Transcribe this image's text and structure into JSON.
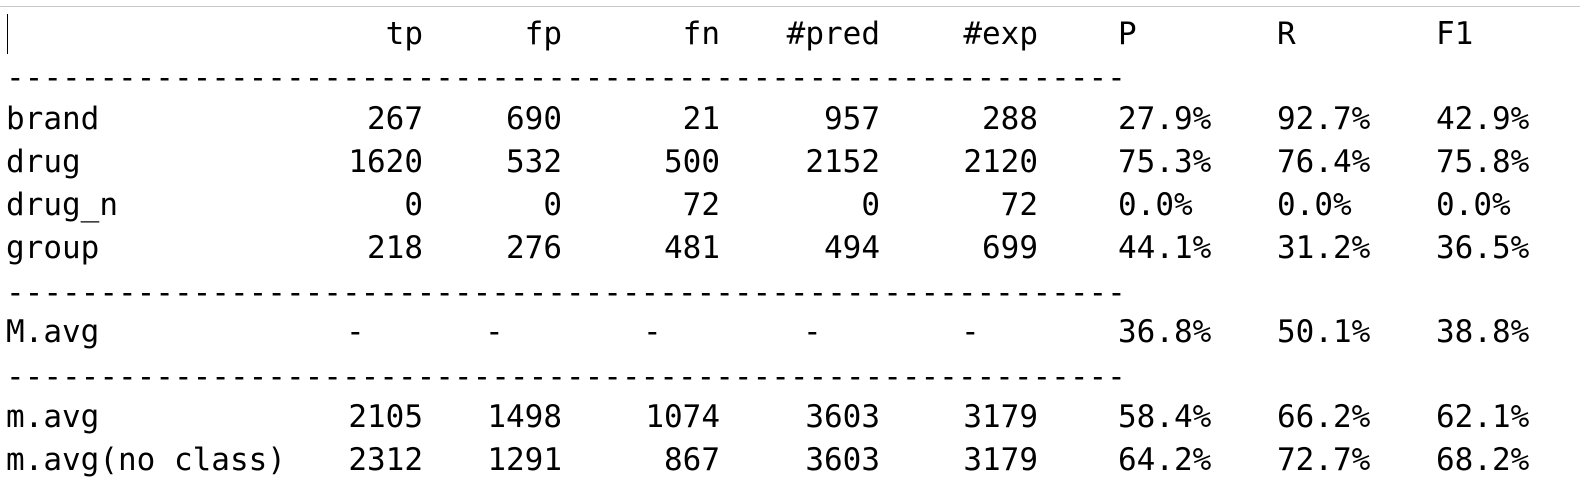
{
  "table": {
    "headers": {
      "tp": "tp",
      "fp": "fp",
      "fn": "fn",
      "pred": "#pred",
      "exp": "#exp",
      "P": "P",
      "R": "R",
      "F1": "F1"
    },
    "separator": "------------------------------------------------------------",
    "class_rows": [
      {
        "label": "brand",
        "tp": "267",
        "fp": "690",
        "fn": "21",
        "pred": "957",
        "exp": "288",
        "P": "27.9%",
        "R": "92.7%",
        "F1": "42.9%"
      },
      {
        "label": "drug",
        "tp": "1620",
        "fp": "532",
        "fn": "500",
        "pred": "2152",
        "exp": "2120",
        "P": "75.3%",
        "R": "76.4%",
        "F1": "75.8%"
      },
      {
        "label": "drug_n",
        "tp": "0",
        "fp": "0",
        "fn": "72",
        "pred": "0",
        "exp": "72",
        "P": "0.0%",
        "R": "0.0%",
        "F1": "0.0%"
      },
      {
        "label": "group",
        "tp": "218",
        "fp": "276",
        "fn": "481",
        "pred": "494",
        "exp": "699",
        "P": "44.1%",
        "R": "31.2%",
        "F1": "36.5%"
      }
    ],
    "macro_row": {
      "label": "M.avg",
      "tp": "-",
      "fp": "-",
      "fn": "-",
      "pred": "-",
      "exp": "-",
      "P": "36.8%",
      "R": "50.1%",
      "F1": "38.8%"
    },
    "micro_rows": [
      {
        "label": "m.avg",
        "tp": "2105",
        "fp": "1498",
        "fn": "1074",
        "pred": "3603",
        "exp": "3179",
        "P": "58.4%",
        "R": "66.2%",
        "F1": "62.1%"
      },
      {
        "label": "m.avg(no class)",
        "tp": "2312",
        "fp": "1291",
        "fn": "867",
        "pred": "3603",
        "exp": "3179",
        "P": "64.2%",
        "R": "72.7%",
        "F1": "68.2%"
      }
    ]
  }
}
